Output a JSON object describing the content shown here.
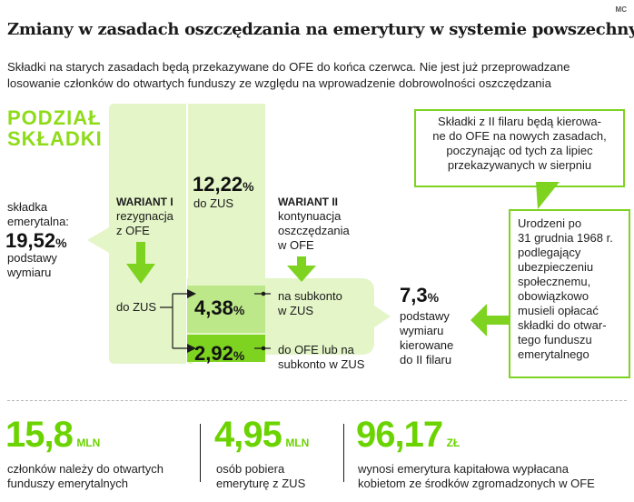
{
  "mark": "MC",
  "title": "Zmiany w zasadach oszczędzania na emerytury w systemie powszechnym",
  "lead": {
    "line1": "Składki na starych zasadach będą przekazywane do OFE do końca czerwca. Nie jest już przeprowadzane",
    "line2": "losowanie członków do otwartych funduszy ze względu na wprowadzenie dobrowolności oszczędzania"
  },
  "header": {
    "line1": "PODZIAŁ",
    "line2": "SKŁADKI"
  },
  "contribution": {
    "label1": "składka",
    "label2": "emerytalna:",
    "value": "19,52",
    "pct": "%",
    "sub1": "podstawy",
    "sub2": "wymiaru"
  },
  "variant1": {
    "title": "WARIANT I",
    "line1": "rezygnacja",
    "line2": "z OFE",
    "target": "do ZUS"
  },
  "variant2": {
    "title": "WARIANT II",
    "line1": "kontynuacja",
    "line2": "oszczędzania",
    "line3": "w OFE"
  },
  "split": {
    "zus_value": "12,22",
    "zus_pct": "%",
    "zus_label": "do ZUS",
    "mid_value": "4,38",
    "mid_pct": "%",
    "mid_label1": "na subkonto",
    "mid_label2": "w ZUS",
    "low_value": "2,92",
    "low_pct": "%",
    "low_label1": "do OFE lub na",
    "low_label2": "subkonto w ZUS"
  },
  "second_pillar": {
    "value": "7,3",
    "pct": "%",
    "line1": "podstawy",
    "line2": "wymiaru",
    "line3": "kierowane",
    "line4": "do II filaru"
  },
  "note_top": {
    "line1": "Składki z II filaru będą kierowa-",
    "line2": "ne do OFE na nowych zasadach,",
    "line3": "poczynając od tych za lipiec",
    "line4": "przekazywanych w sierpniu"
  },
  "note_side": {
    "lines": [
      "Urodzeni po",
      "31 grudnia 1968 r.",
      "podlegający",
      "ubezpieczeniu",
      "społecznemu,",
      "obowiązkowo",
      "musieli opłacać",
      "składki do otwar-",
      "tego funduszu",
      "emerytalnego"
    ]
  },
  "stats": [
    {
      "value": "15,8",
      "unit": "MLN",
      "line1": "członków należy do otwartych",
      "line2": "funduszy emerytalnych"
    },
    {
      "value": "4,95",
      "unit": "MLN",
      "line1": "osób pobiera",
      "line2": "emeryturę z ZUS"
    },
    {
      "value": "96,17",
      "unit": "ZŁ",
      "line1": "wynosi emerytura kapitałowa wypłacana",
      "line2": "kobietom ze środków zgromadzonych w OFE"
    }
  ],
  "colors": {
    "light_green": "#e4f5c8",
    "mid_green": "#bde889",
    "strong_green": "#7ed321",
    "bright_green": "#6bd300"
  }
}
